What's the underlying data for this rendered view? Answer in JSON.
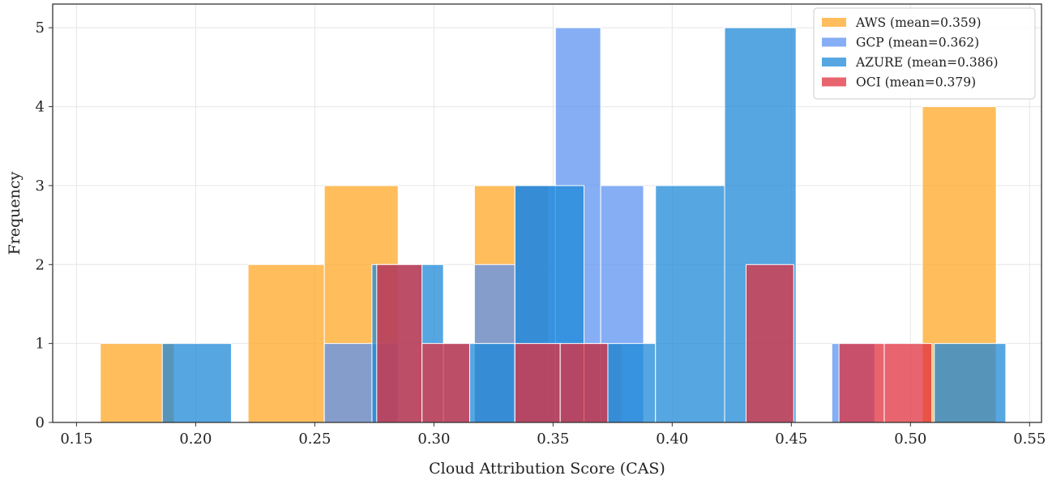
{
  "chart_data": {
    "type": "histogram",
    "title": "",
    "xlabel": "Cloud Attribution Score (CAS)",
    "ylabel": "Frequency",
    "xlim": [
      0.14,
      0.555
    ],
    "ylim": [
      0,
      5.3
    ],
    "xticks": [
      "0.15",
      "0.20",
      "0.25",
      "0.30",
      "0.35",
      "0.40",
      "0.45",
      "0.50",
      "0.55"
    ],
    "yticks": [
      "0",
      "1",
      "2",
      "3",
      "4",
      "5"
    ],
    "grid": true,
    "legend_position": "top-right",
    "series": [
      {
        "name": "AWS (mean=0.359)",
        "color": "#FFA726",
        "opacity": 0.75,
        "bins": [
          {
            "x0": 0.16,
            "x1": 0.191,
            "count": 1
          },
          {
            "x0": 0.222,
            "x1": 0.254,
            "count": 2
          },
          {
            "x0": 0.254,
            "x1": 0.285,
            "count": 3
          },
          {
            "x0": 0.317,
            "x1": 0.348,
            "count": 3
          },
          {
            "x0": 0.348,
            "x1": 0.379,
            "count": 1
          },
          {
            "x0": 0.505,
            "x1": 0.536,
            "count": 4
          }
        ]
      },
      {
        "name": "GCP (mean=0.362)",
        "color": "#5C93F0",
        "opacity": 0.75,
        "bins": [
          {
            "x0": 0.254,
            "x1": 0.285,
            "count": 1
          },
          {
            "x0": 0.317,
            "x1": 0.334,
            "count": 2
          },
          {
            "x0": 0.334,
            "x1": 0.351,
            "count": 3
          },
          {
            "x0": 0.351,
            "x1": 0.37,
            "count": 5
          },
          {
            "x0": 0.37,
            "x1": 0.388,
            "count": 3
          },
          {
            "x0": 0.467,
            "x1": 0.485,
            "count": 1
          }
        ]
      },
      {
        "name": "AZURE (mean=0.386)",
        "color": "#1E88D8",
        "opacity": 0.75,
        "bins": [
          {
            "x0": 0.186,
            "x1": 0.215,
            "count": 1
          },
          {
            "x0": 0.274,
            "x1": 0.304,
            "count": 2
          },
          {
            "x0": 0.304,
            "x1": 0.334,
            "count": 1
          },
          {
            "x0": 0.334,
            "x1": 0.363,
            "count": 3
          },
          {
            "x0": 0.363,
            "x1": 0.393,
            "count": 1
          },
          {
            "x0": 0.393,
            "x1": 0.422,
            "count": 3
          },
          {
            "x0": 0.422,
            "x1": 0.452,
            "count": 5
          },
          {
            "x0": 0.51,
            "x1": 0.54,
            "count": 1
          }
        ]
      },
      {
        "name": "OCI (mean=0.379)",
        "color": "#E0303E",
        "opacity": 0.75,
        "bins": [
          {
            "x0": 0.276,
            "x1": 0.295,
            "count": 2
          },
          {
            "x0": 0.295,
            "x1": 0.315,
            "count": 1
          },
          {
            "x0": 0.334,
            "x1": 0.353,
            "count": 1
          },
          {
            "x0": 0.353,
            "x1": 0.373,
            "count": 1
          },
          {
            "x0": 0.431,
            "x1": 0.451,
            "count": 2
          },
          {
            "x0": 0.47,
            "x1": 0.489,
            "count": 1
          },
          {
            "x0": 0.489,
            "x1": 0.509,
            "count": 1
          }
        ]
      }
    ]
  }
}
